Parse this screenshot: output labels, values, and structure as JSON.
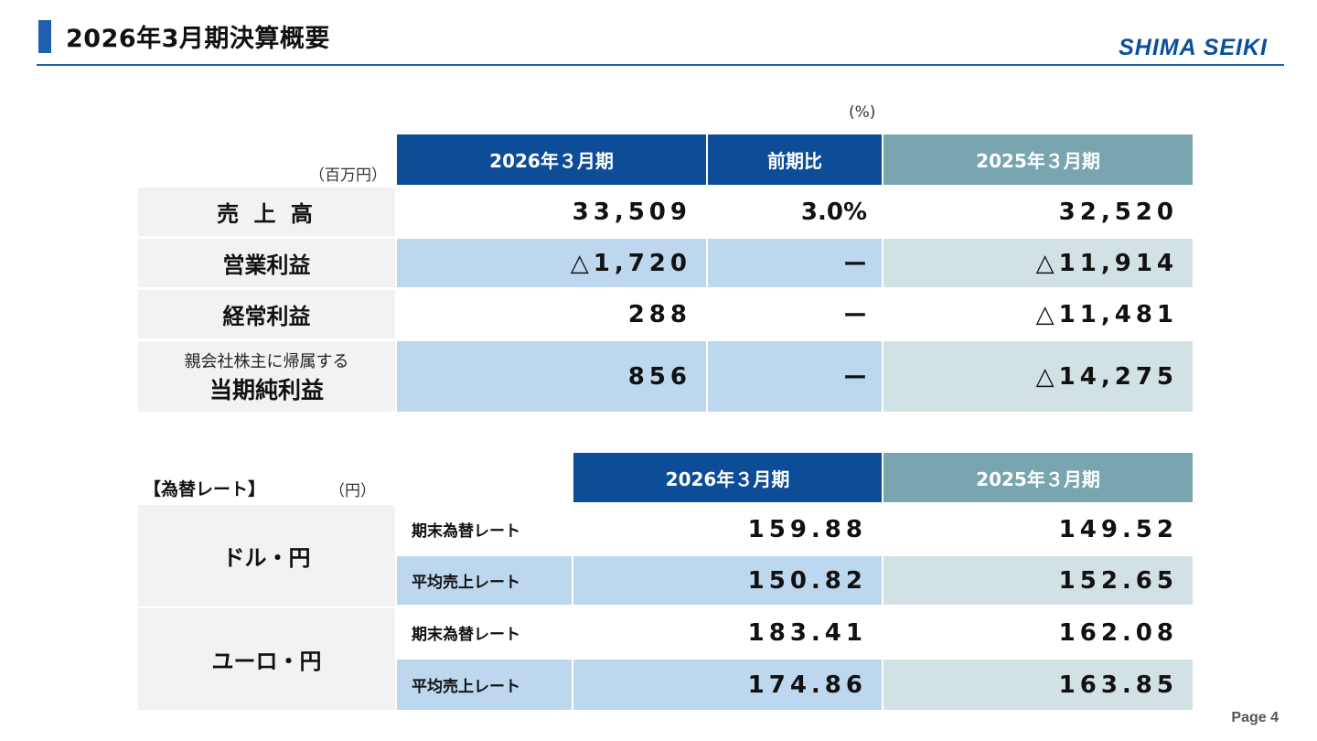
{
  "header": {
    "title": "2026年3月期決算概要",
    "logo": "SHIMA SEIKI"
  },
  "summary": {
    "pct_note": "(%)",
    "unit_note": "（百万円）",
    "columns": [
      "2026年３月期",
      "前期比",
      "2025年３月期"
    ],
    "rows": [
      {
        "label": "売 上 高",
        "current": "33,509",
        "ratio": "3.0%",
        "previous": "32,520"
      },
      {
        "label": "営業利益",
        "current": "△1,720",
        "ratio": "ー",
        "previous": "△11,914"
      },
      {
        "label": "経常利益",
        "current": "288",
        "ratio": "ー",
        "previous": "△11,481"
      },
      {
        "label_small": "親会社株主に帰属する",
        "label": "当期純利益",
        "current": "856",
        "ratio": "ー",
        "previous": "△14,275"
      }
    ]
  },
  "fx": {
    "title": "【為替レート】",
    "unit": "（円）",
    "columns": [
      "2026年３月期",
      "2025年３月期"
    ],
    "groups": [
      {
        "label": "ドル・円",
        "rows": [
          {
            "label": "期末為替レート",
            "current": "159.88",
            "previous": "149.52"
          },
          {
            "label": "平均売上レート",
            "current": "150.82",
            "previous": "152.65"
          }
        ]
      },
      {
        "label": "ユーロ・円",
        "rows": [
          {
            "label": "期末為替レート",
            "current": "183.41",
            "previous": "162.08"
          },
          {
            "label": "平均売上レート",
            "current": "174.86",
            "previous": "163.85"
          }
        ]
      }
    ]
  },
  "footer": {
    "page": "Page 4"
  },
  "colors": {
    "header_blue": "#0d4c96",
    "header_teal": "#78a5b0",
    "row_blue": "#bdd7ee",
    "row_teal": "#d2e1e4",
    "label_gray": "#f2f2f2",
    "accent": "#1f5fae"
  }
}
